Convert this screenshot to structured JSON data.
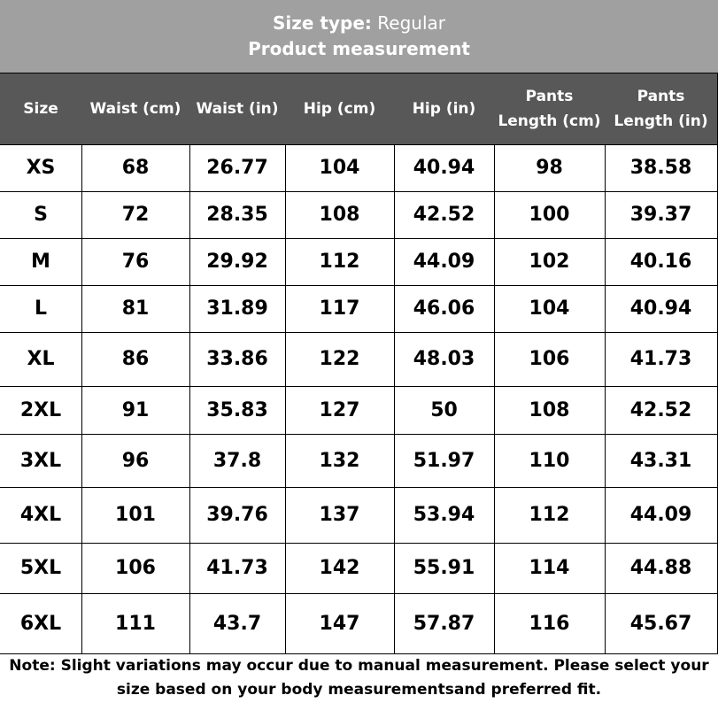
{
  "title": {
    "label": "Size type:",
    "value": "Regular",
    "subtitle": "Product measurement"
  },
  "table": {
    "header": [
      "Size",
      "Waist (cm)",
      "Waist (in)",
      "Hip (cm)",
      "Hip (in)",
      "Pants Length (cm)",
      "Pants Length (in)"
    ],
    "rows": [
      [
        "XS",
        "68",
        "26.77",
        "104",
        "40.94",
        "98",
        "38.58"
      ],
      [
        "S",
        "72",
        "28.35",
        "108",
        "42.52",
        "100",
        "39.37"
      ],
      [
        "M",
        "76",
        "29.92",
        "112",
        "44.09",
        "102",
        "40.16"
      ],
      [
        "L",
        "81",
        "31.89",
        "117",
        "46.06",
        "104",
        "40.94"
      ],
      [
        "XL",
        "86",
        "33.86",
        "122",
        "48.03",
        "106",
        "41.73"
      ],
      [
        "2XL",
        "91",
        "35.83",
        "127",
        "50",
        "108",
        "42.52"
      ],
      [
        "3XL",
        "96",
        "37.8",
        "132",
        "51.97",
        "110",
        "43.31"
      ],
      [
        "4XL",
        "101",
        "39.76",
        "137",
        "53.94",
        "112",
        "44.09"
      ],
      [
        "5XL",
        "106",
        "41.73",
        "142",
        "55.91",
        "114",
        "44.88"
      ],
      [
        "6XL",
        "111",
        "43.7",
        "147",
        "57.87",
        "116",
        "45.67"
      ]
    ]
  },
  "note": "Note: Slight variations may occur due to manual measurement. Please select your size based on your body measurementsand preferred fit."
}
